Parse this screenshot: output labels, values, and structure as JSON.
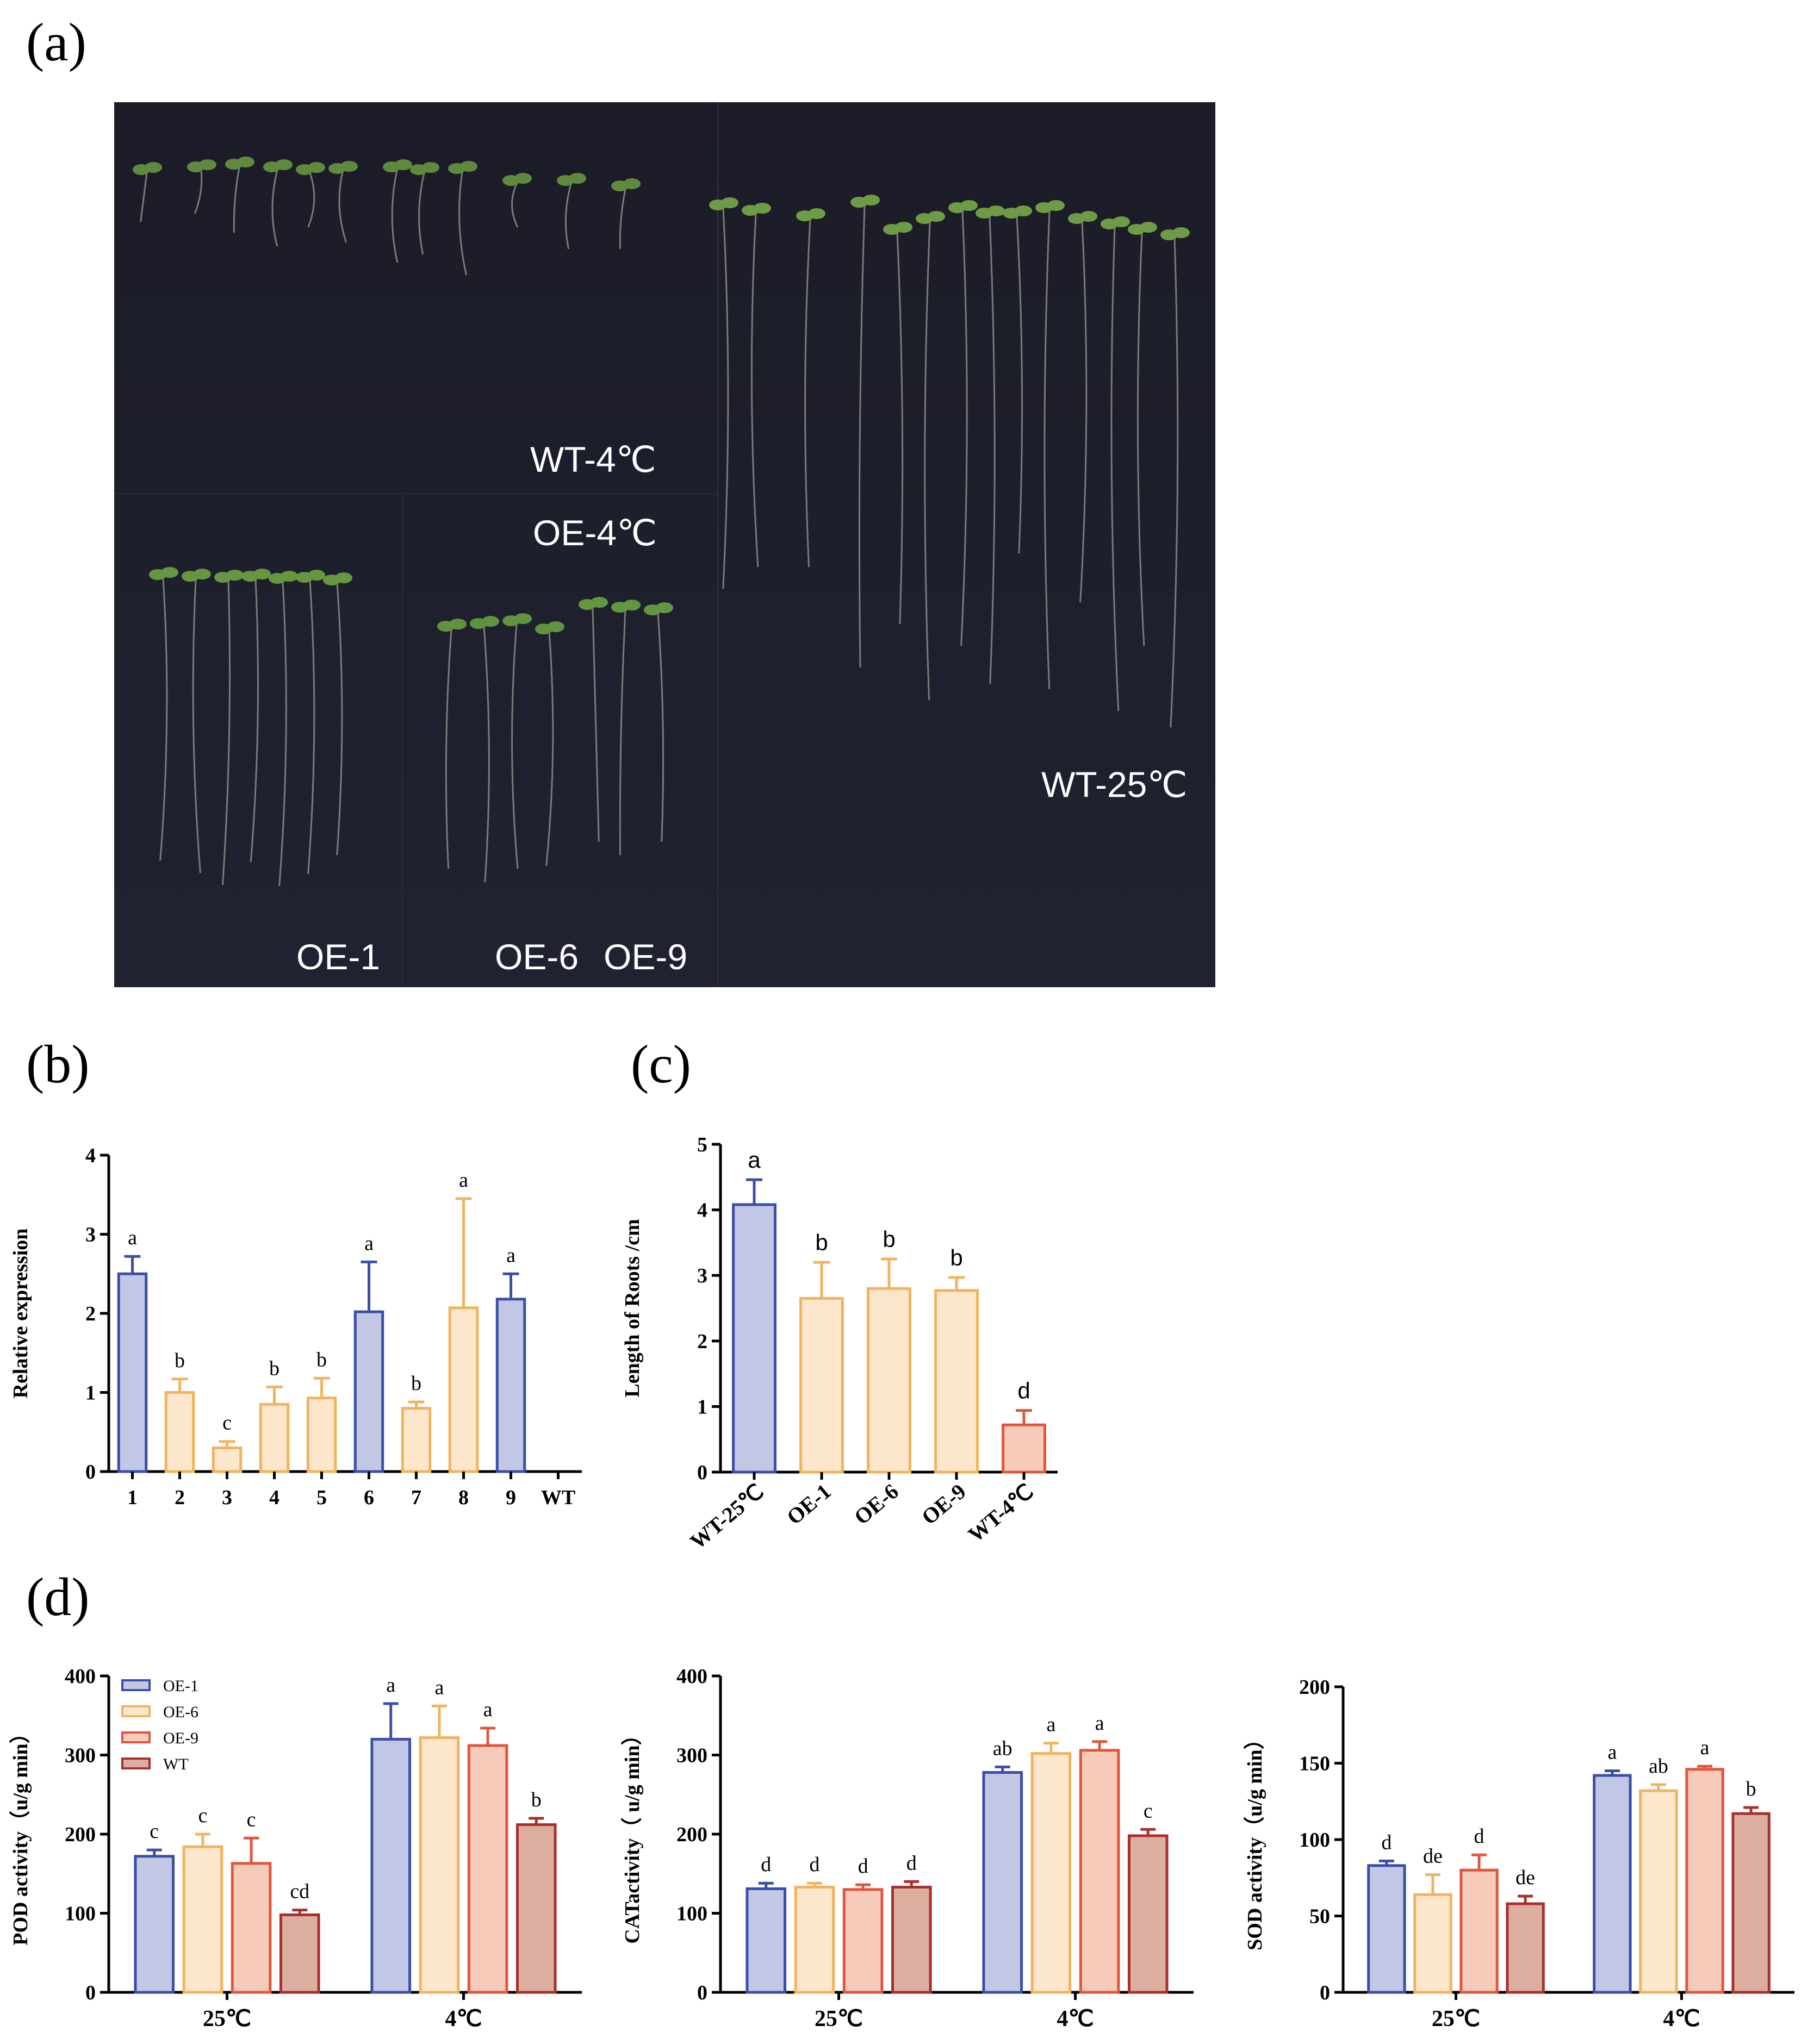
{
  "panels": {
    "a": "(a)",
    "b": "(b)",
    "c": "(c)",
    "d": "(d)"
  },
  "photo": {
    "labels": {
      "wt_4c": "WT-4℃",
      "oe_4c": "OE-4℃",
      "wt_25c": "WT-25℃",
      "oe1": "OE-1",
      "oe6": "OE-6",
      "oe9": "OE-9"
    }
  },
  "colors": {
    "blue_stroke": "#3a4ea6",
    "blue_fill": "#c3c7e6",
    "yellow_stroke": "#f0b35e",
    "yellow_fill": "#fde7cc",
    "orange_stroke": "#e0553d",
    "orange_fill": "#f7cbb9",
    "red_stroke": "#a8302c",
    "red_fill": "#dcaea0"
  },
  "chart_data": [
    {
      "id": "b",
      "type": "bar",
      "ylabel": "Relative expression",
      "ylim": [
        0,
        4
      ],
      "yticks": [
        "0",
        "1",
        "2",
        "3",
        "4"
      ],
      "categories": [
        "1",
        "2",
        "3",
        "4",
        "5",
        "6",
        "7",
        "8",
        "9",
        "WT"
      ],
      "values": [
        2.5,
        1.0,
        0.3,
        0.85,
        0.93,
        2.02,
        0.8,
        2.07,
        2.18,
        0
      ],
      "errors": [
        0.22,
        0.17,
        0.08,
        0.22,
        0.25,
        0.63,
        0.08,
        1.38,
        0.32,
        0
      ],
      "letters": [
        "a",
        "b",
        "c",
        "b",
        "b",
        "a",
        "b",
        "a",
        "a",
        ""
      ],
      "color_keys": [
        "blue",
        "yellow",
        "yellow",
        "yellow",
        "yellow",
        "blue",
        "yellow",
        "yellow",
        "blue",
        "none"
      ]
    },
    {
      "id": "c",
      "type": "bar",
      "ylabel": "Length of Roots /cm",
      "ylim": [
        0,
        5
      ],
      "yticks": [
        "0",
        "1",
        "2",
        "3",
        "4",
        "5"
      ],
      "categories": [
        "WT-25℃",
        "OE-1",
        "OE-6",
        "OE-9",
        "WT-4℃"
      ],
      "values": [
        4.08,
        2.65,
        2.8,
        2.77,
        0.72
      ],
      "errors": [
        0.38,
        0.55,
        0.45,
        0.2,
        0.22
      ],
      "letters": [
        "a",
        "b",
        "b",
        "b",
        "d"
      ],
      "color_keys": [
        "blue",
        "yellow",
        "yellow",
        "yellow",
        "orange"
      ]
    },
    {
      "id": "d1",
      "type": "bar",
      "ylabel": "POD  activity（u/g  min）",
      "ylim": [
        0,
        400
      ],
      "yticks": [
        "0",
        "100",
        "200",
        "300",
        "400"
      ],
      "categories": [
        "25℃",
        "4℃"
      ],
      "series": [
        {
          "name": "OE-1",
          "color_key": "blue",
          "values": [
            172,
            320
          ],
          "errors": [
            8,
            45
          ],
          "letters": [
            "c",
            "a"
          ]
        },
        {
          "name": "OE-6",
          "color_key": "yellow",
          "values": [
            184,
            322
          ],
          "errors": [
            16,
            40
          ],
          "letters": [
            "c",
            "a"
          ]
        },
        {
          "name": "OE-9",
          "color_key": "orange",
          "values": [
            163,
            312
          ],
          "errors": [
            32,
            22
          ],
          "letters": [
            "c",
            "a"
          ]
        },
        {
          "name": "WT",
          "color_key": "red",
          "values": [
            98,
            212
          ],
          "errors": [
            6,
            8
          ],
          "letters": [
            "cd",
            "b"
          ]
        }
      ],
      "legend": {
        "position": "top-left"
      }
    },
    {
      "id": "d2",
      "type": "bar",
      "ylabel": "CATactivity（ u/g  min）",
      "ylim": [
        0,
        400
      ],
      "yticks": [
        "0",
        "100",
        "200",
        "300",
        "400"
      ],
      "categories": [
        "25℃",
        "4℃"
      ],
      "series": [
        {
          "name": "OE-1",
          "color_key": "blue",
          "values": [
            131,
            278
          ],
          "errors": [
            7,
            7
          ],
          "letters": [
            "d",
            "ab"
          ]
        },
        {
          "name": "OE-6",
          "color_key": "yellow",
          "values": [
            133,
            302
          ],
          "errors": [
            5,
            13
          ],
          "letters": [
            "d",
            "a"
          ]
        },
        {
          "name": "OE-9",
          "color_key": "orange",
          "values": [
            130,
            306
          ],
          "errors": [
            6,
            11
          ],
          "letters": [
            "d",
            "a"
          ]
        },
        {
          "name": "WT",
          "color_key": "red",
          "values": [
            133,
            198
          ],
          "errors": [
            7,
            8
          ],
          "letters": [
            "d",
            "c"
          ]
        }
      ]
    },
    {
      "id": "d3",
      "type": "bar",
      "ylabel": "SOD activity（u/g  min）",
      "ylim": [
        0,
        200
      ],
      "yticks": [
        "0",
        "50",
        "100",
        "150",
        "200"
      ],
      "categories": [
        "25℃",
        "4℃"
      ],
      "series": [
        {
          "name": "OE-1",
          "color_key": "blue",
          "values": [
            83,
            142
          ],
          "errors": [
            3,
            3
          ],
          "letters": [
            "d",
            "a"
          ]
        },
        {
          "name": "OE-6",
          "color_key": "yellow",
          "values": [
            64,
            132
          ],
          "errors": [
            13,
            4
          ],
          "letters": [
            "de",
            "ab"
          ]
        },
        {
          "name": "OE-9",
          "color_key": "orange",
          "values": [
            80,
            146
          ],
          "errors": [
            10,
            2
          ],
          "letters": [
            "d",
            "a"
          ]
        },
        {
          "name": "WT",
          "color_key": "red",
          "values": [
            58,
            117
          ],
          "errors": [
            5,
            4
          ],
          "letters": [
            "de",
            "b"
          ]
        }
      ]
    }
  ]
}
